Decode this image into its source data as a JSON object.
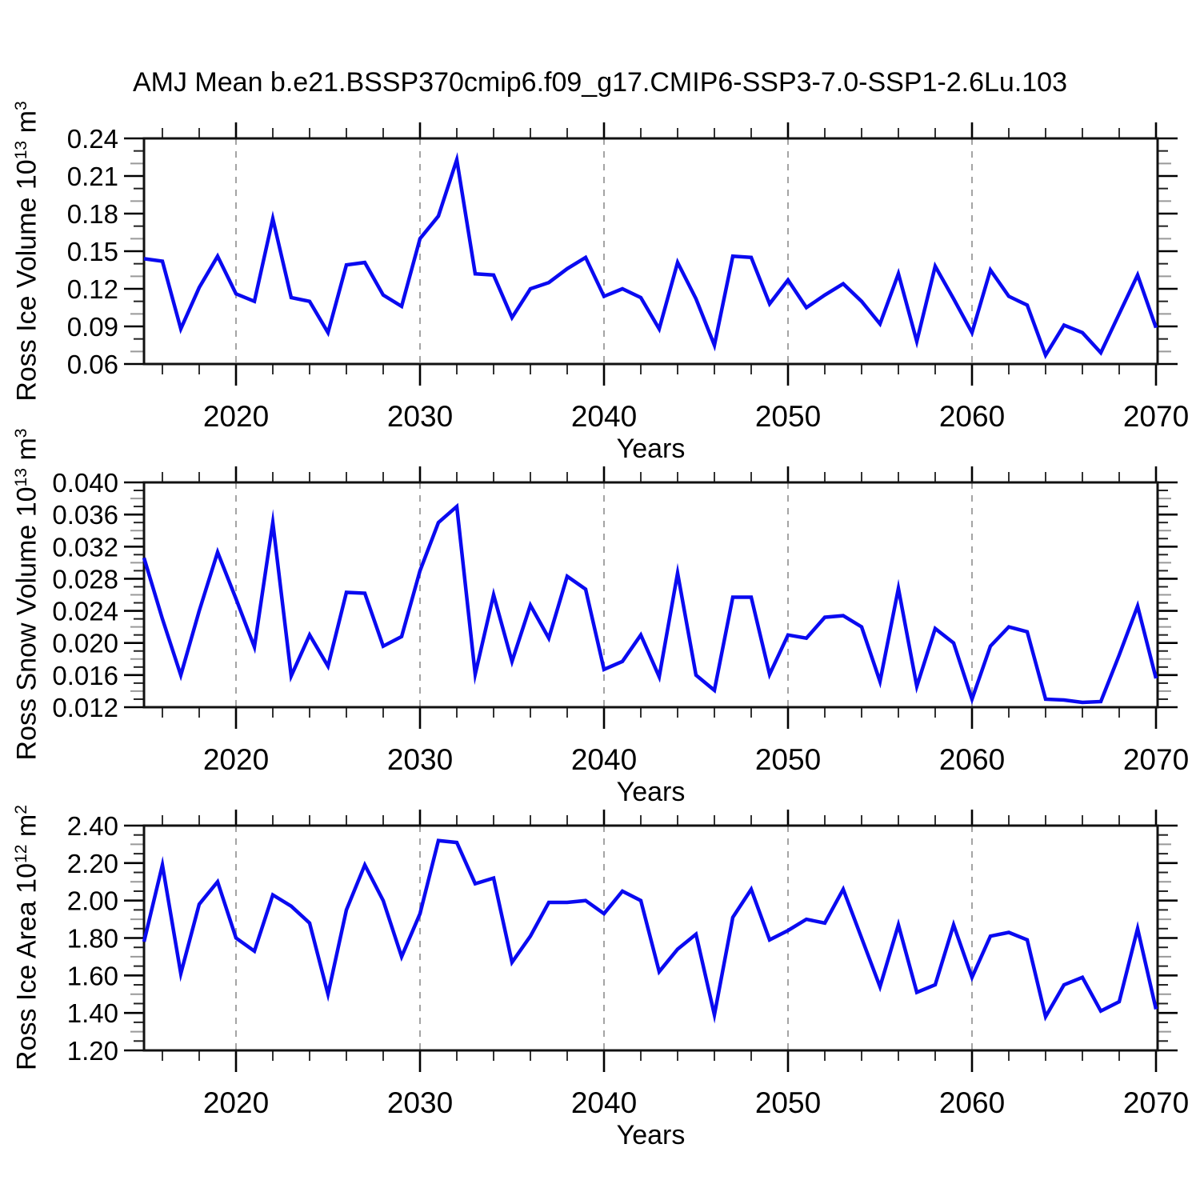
{
  "title": "AMJ Mean b.e21.BSSP370cmip6.f09_g17.CMIP6-SSP3-7.0-SSP1-2.6Lu.103",
  "line_color": "#0a0af0",
  "x_axis": {
    "label": "Years",
    "start": 2015,
    "end": 2070,
    "major_ticks": [
      2020,
      2030,
      2040,
      2050,
      2060,
      2070
    ],
    "minor_step": 2,
    "gridline_years": [
      2020,
      2030,
      2040,
      2050,
      2060
    ]
  },
  "years": [
    2015,
    2016,
    2017,
    2018,
    2019,
    2020,
    2021,
    2022,
    2023,
    2024,
    2025,
    2026,
    2027,
    2028,
    2029,
    2030,
    2031,
    2032,
    2033,
    2034,
    2035,
    2036,
    2037,
    2038,
    2039,
    2040,
    2041,
    2042,
    2043,
    2044,
    2045,
    2046,
    2047,
    2048,
    2049,
    2050,
    2051,
    2052,
    2053,
    2054,
    2055,
    2056,
    2057,
    2058,
    2059,
    2060,
    2061,
    2062,
    2063,
    2064,
    2065,
    2066,
    2067,
    2068,
    2069,
    2070
  ],
  "chart_data": [
    {
      "type": "line",
      "name": "ross-ice-volume",
      "y_label": "Ross Ice Volume 10^13 m^3",
      "y_label_parts": {
        "text": "Ross Ice Volume 10",
        "sup": "13",
        "unit": " m",
        "unit_sup": "3"
      },
      "xlabel": "Years",
      "ylim": [
        0.06,
        0.24
      ],
      "ytick_step": 0.03,
      "yminor_step": 0.01,
      "ytick_decimals": 2,
      "grid": "dashed-vertical-decades",
      "legend": "none",
      "values": [
        0.144,
        0.142,
        0.088,
        0.121,
        0.146,
        0.116,
        0.11,
        0.176,
        0.113,
        0.11,
        0.085,
        0.139,
        0.141,
        0.115,
        0.106,
        0.16,
        0.178,
        0.223,
        0.132,
        0.131,
        0.097,
        0.12,
        0.125,
        0.136,
        0.145,
        0.114,
        0.12,
        0.113,
        0.088,
        0.141,
        0.112,
        0.075,
        0.146,
        0.145,
        0.108,
        0.127,
        0.105,
        0.115,
        0.124,
        0.11,
        0.092,
        0.132,
        0.078,
        0.138,
        0.112,
        0.085,
        0.135,
        0.114,
        0.107,
        0.067,
        0.091,
        0.085,
        0.069,
        0.1,
        0.131,
        0.089
      ]
    },
    {
      "type": "line",
      "name": "ross-snow-volume",
      "y_label": "Ross Snow Volume 10^13 m^3",
      "y_label_parts": {
        "text": "Ross Snow Volume 10",
        "sup": "13",
        "unit": " m",
        "unit_sup": "3"
      },
      "xlabel": "Years",
      "ylim": [
        0.012,
        0.04
      ],
      "ytick_step": 0.004,
      "yminor_step": 0.001,
      "ytick_decimals": 3,
      "grid": "dashed-vertical-decades",
      "legend": "none",
      "values": [
        0.0306,
        0.023,
        0.016,
        0.024,
        0.0313,
        0.0255,
        0.0195,
        0.035,
        0.0159,
        0.021,
        0.0171,
        0.0263,
        0.0262,
        0.0196,
        0.0208,
        0.029,
        0.035,
        0.037,
        0.0161,
        0.026,
        0.0177,
        0.0247,
        0.0206,
        0.0283,
        0.0267,
        0.0167,
        0.0177,
        0.021,
        0.0158,
        0.0287,
        0.016,
        0.0141,
        0.0257,
        0.0257,
        0.0161,
        0.021,
        0.0206,
        0.0232,
        0.0234,
        0.022,
        0.0152,
        0.0268,
        0.0146,
        0.0218,
        0.02,
        0.013,
        0.0196,
        0.022,
        0.0214,
        0.013,
        0.0129,
        0.0126,
        0.0127,
        0.0185,
        0.0246,
        0.0156
      ]
    },
    {
      "type": "line",
      "name": "ross-ice-area",
      "y_label": "Ross Ice Area 10^12 m^2",
      "y_label_parts": {
        "text": "Ross Ice Area 10",
        "sup": "12",
        "unit": " m",
        "unit_sup": "2"
      },
      "xlabel": "Years",
      "ylim": [
        1.2,
        2.4
      ],
      "ytick_step": 0.2,
      "yminor_step": 0.05,
      "ytick_decimals": 2,
      "grid": "dashed-vertical-decades",
      "legend": "none",
      "values": [
        1.78,
        2.19,
        1.61,
        1.98,
        2.1,
        1.8,
        1.73,
        2.03,
        1.97,
        1.88,
        1.5,
        1.95,
        2.19,
        2.0,
        1.7,
        1.93,
        2.32,
        2.31,
        2.09,
        2.12,
        1.67,
        1.81,
        1.99,
        1.99,
        2.0,
        1.93,
        2.05,
        2.0,
        1.62,
        1.74,
        1.82,
        1.39,
        1.91,
        2.06,
        1.79,
        1.84,
        1.9,
        1.88,
        2.06,
        1.8,
        1.54,
        1.87,
        1.51,
        1.55,
        1.87,
        1.59,
        1.81,
        1.83,
        1.79,
        1.38,
        1.55,
        1.59,
        1.41,
        1.46,
        1.85,
        1.42
      ]
    }
  ]
}
